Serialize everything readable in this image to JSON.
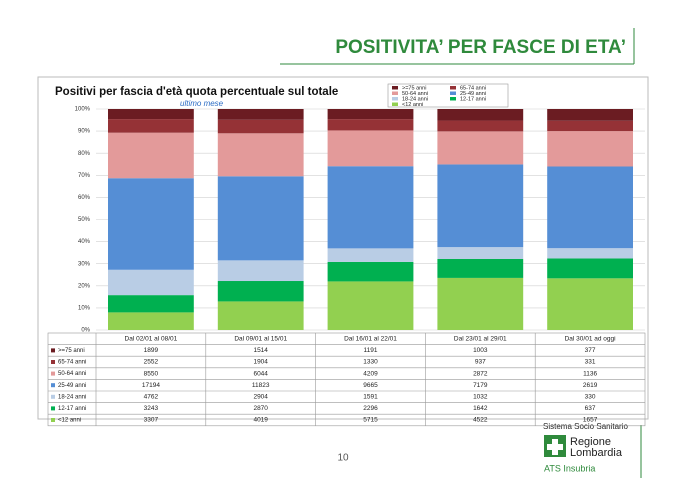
{
  "slide_title": "POSITIVITA’ PER FASCE DI ETA’",
  "page_number": "10",
  "logo": {
    "system": "Sistema Socio Sanitario",
    "region_1": "Regione",
    "region_2": "Lombardia",
    "agency": "ATS Insubria"
  },
  "chart_data": {
    "type": "stacked_percent_bar",
    "title": "Positivi per fascia d'età quota percentuale sul totale",
    "subtitle": "ultimo mese",
    "categories": [
      "Dal 02/01 al 08/01",
      "Dal 09/01 al 15/01",
      "Dal 16/01 al 22/01",
      "Dal 23/01 al 29/01",
      "Dal 30/01 ad oggi"
    ],
    "series": [
      {
        "name": ">=75 anni",
        "color": "#6b1c22",
        "values": [
          1899,
          1514,
          1191,
          1003,
          377
        ]
      },
      {
        "name": "65-74 anni",
        "color": "#953236",
        "values": [
          2552,
          1904,
          1330,
          937,
          331
        ]
      },
      {
        "name": "50-64 anni",
        "color": "#e39a9a",
        "values": [
          8550,
          6044,
          4209,
          2872,
          1136
        ]
      },
      {
        "name": "25-49 anni",
        "color": "#558ed5",
        "values": [
          17194,
          11823,
          9665,
          7179,
          2619
        ]
      },
      {
        "name": "18-24 anni",
        "color": "#b9cde5",
        "values": [
          4762,
          2904,
          1591,
          1032,
          330
        ]
      },
      {
        "name": "12-17 anni",
        "color": "#00b050",
        "values": [
          3243,
          2870,
          2296,
          1642,
          637
        ]
      },
      {
        "name": "<12 anni",
        "color": "#92d050",
        "values": [
          3307,
          4019,
          5715,
          4522,
          1657
        ]
      }
    ],
    "ylim": [
      0,
      100
    ],
    "yticks": [
      {
        "value": 0,
        "label": "0%"
      },
      {
        "value": 10,
        "label": "10%"
      },
      {
        "value": 20,
        "label": "20%"
      },
      {
        "value": 30,
        "label": "30%"
      },
      {
        "value": 40,
        "label": "40%"
      },
      {
        "value": 50,
        "label": "50%"
      },
      {
        "value": 60,
        "label": "60%"
      },
      {
        "value": 70,
        "label": "70%"
      },
      {
        "value": 80,
        "label": "80%"
      },
      {
        "value": 90,
        "label": "90%"
      },
      {
        "value": 100,
        "label": "100%"
      }
    ],
    "grid": true
  }
}
